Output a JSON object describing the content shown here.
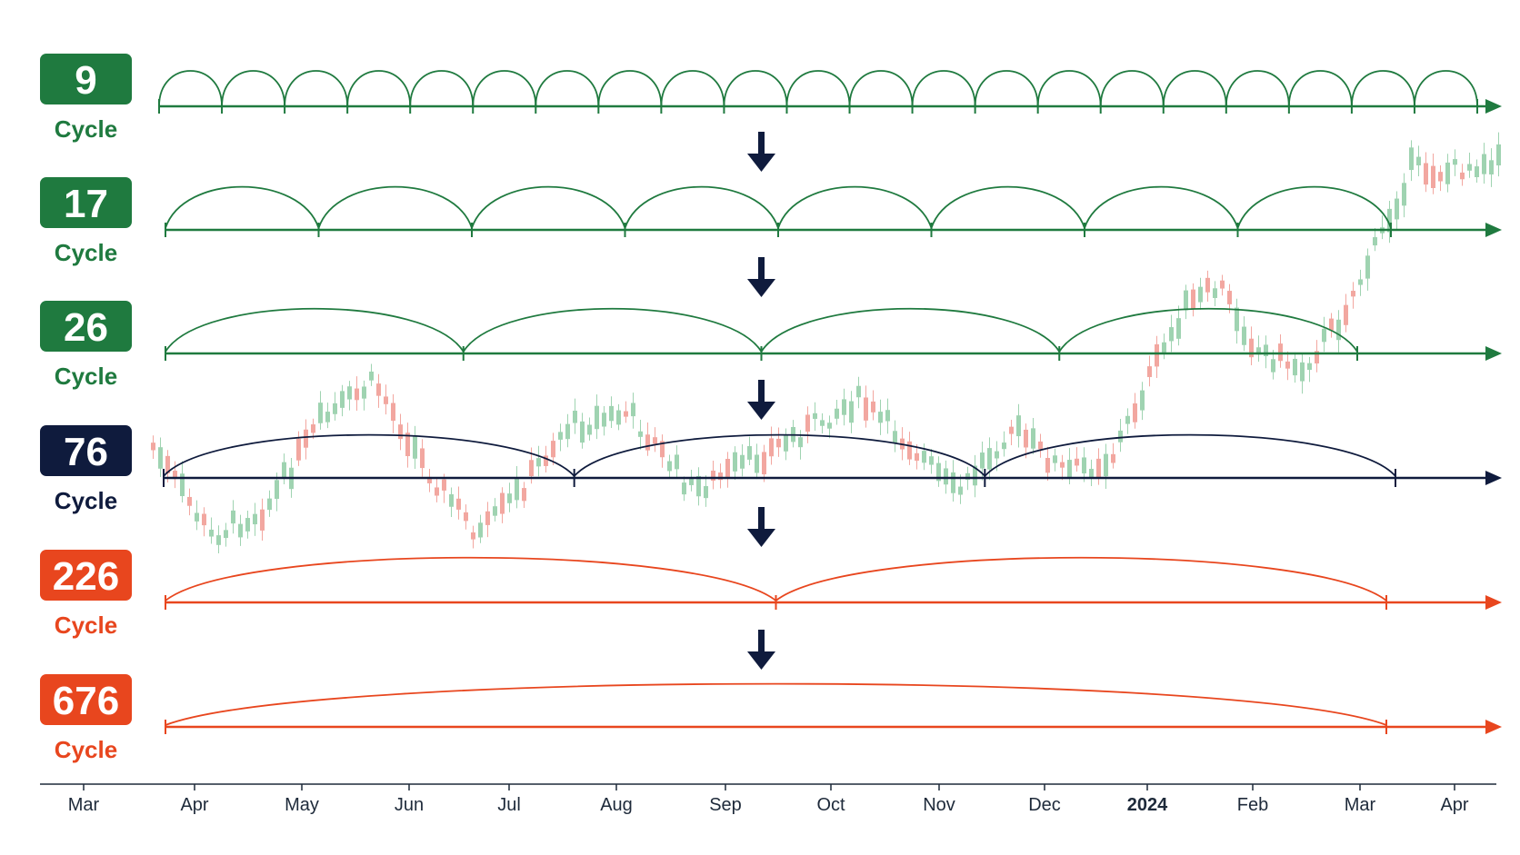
{
  "colors": {
    "green": "#1f7a3f",
    "navy": "#0f1b3d",
    "orange": "#e8461e",
    "candle_up": "#9fd3b1",
    "candle_down": "#f2a7a0",
    "axis": "#1e2a3a",
    "arrow": "#0f1b3d"
  },
  "cycles": [
    {
      "number": "9",
      "word": "Cycle",
      "color": "green",
      "segments": 21
    },
    {
      "number": "17",
      "word": "Cycle",
      "color": "green",
      "segments": 8
    },
    {
      "number": "26",
      "word": "Cycle",
      "color": "green",
      "segments": 4
    },
    {
      "number": "76",
      "word": "Cycle",
      "color": "navy",
      "segments": 3
    },
    {
      "number": "226",
      "word": "Cycle",
      "color": "orange",
      "segments": 2
    },
    {
      "number": "676",
      "word": "Cycle",
      "color": "orange",
      "segments": 1
    }
  ],
  "axis": {
    "months": [
      {
        "label": "Mar",
        "bold": false
      },
      {
        "label": "Apr",
        "bold": false
      },
      {
        "label": "May",
        "bold": false
      },
      {
        "label": "Jun",
        "bold": false
      },
      {
        "label": "Jul",
        "bold": false
      },
      {
        "label": "Aug",
        "bold": false
      },
      {
        "label": "Sep",
        "bold": false
      },
      {
        "label": "Oct",
        "bold": false
      },
      {
        "label": "Nov",
        "bold": false
      },
      {
        "label": "Dec",
        "bold": false
      },
      {
        "label": "2024",
        "bold": true
      },
      {
        "label": "Feb",
        "bold": false
      },
      {
        "label": "Mar",
        "bold": false
      },
      {
        "label": "Apr",
        "bold": false
      }
    ]
  },
  "arrow_icon": "down-arrow-icon",
  "background_icon": "candlestick-chart"
}
